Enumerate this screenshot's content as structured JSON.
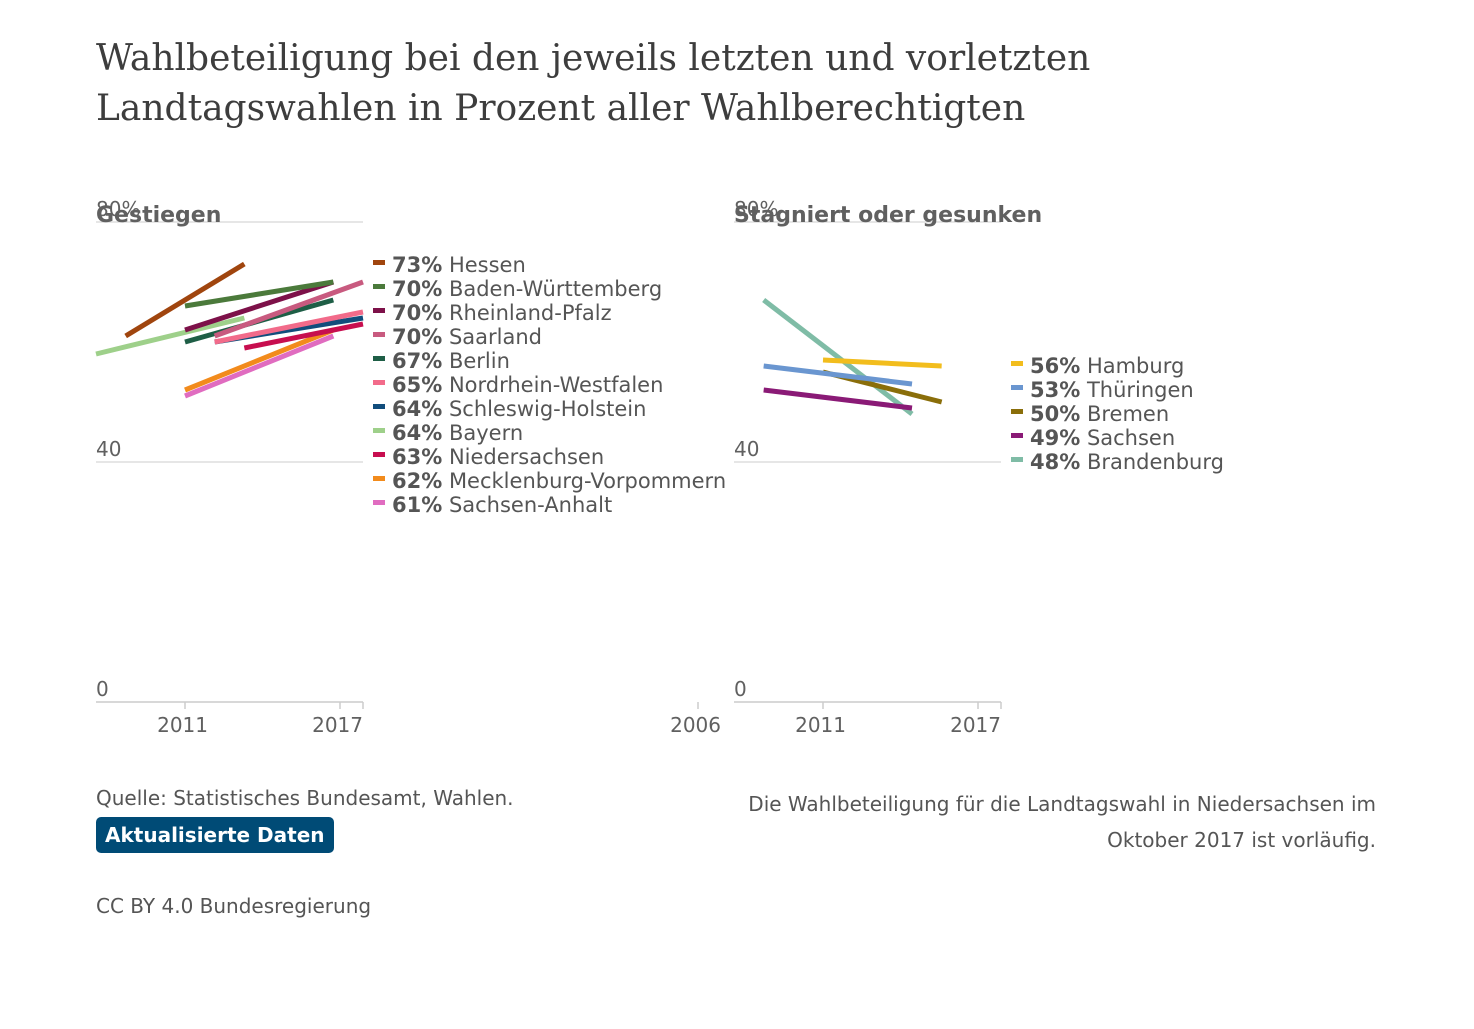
{
  "title": "Wahlbeteiligung bei den jeweils letzten und vorletzten Landtagswahlen in Prozent aller Wahlberechtigten",
  "chart_data": [
    {
      "type": "line",
      "title": "Gestiegen",
      "y_ticks": [
        "80%",
        "40",
        "0"
      ],
      "x_ticks": [
        "2011",
        "2017"
      ],
      "ylim": [
        0,
        80
      ],
      "xlim": [
        2008,
        2017
      ],
      "grid": true,
      "series": [
        {
          "name": "Hessen",
          "value_label": "73%",
          "color": "#a0450e",
          "points": [
            [
              2009,
              61
            ],
            [
              2013,
              73
            ]
          ]
        },
        {
          "name": "Baden-Württemberg",
          "value_label": "70%",
          "color": "#4b7a3b",
          "points": [
            [
              2011,
              66
            ],
            [
              2016,
              70
            ]
          ]
        },
        {
          "name": "Rheinland-Pfalz",
          "value_label": "70%",
          "color": "#7d1149",
          "points": [
            [
              2011,
              62
            ],
            [
              2016,
              70
            ]
          ]
        },
        {
          "name": "Saarland",
          "value_label": "70%",
          "color": "#c85a7f",
          "points": [
            [
              2012,
              61
            ],
            [
              2017,
              70
            ]
          ]
        },
        {
          "name": "Berlin",
          "value_label": "67%",
          "color": "#1e5e46",
          "points": [
            [
              2011,
              60
            ],
            [
              2016,
              67
            ]
          ]
        },
        {
          "name": "Nordrhein-Westfalen",
          "value_label": "65%",
          "color": "#f26b8a",
          "points": [
            [
              2012,
              60
            ],
            [
              2017,
              65
            ]
          ]
        },
        {
          "name": "Schleswig-Holstein",
          "value_label": "64%",
          "color": "#114d7c",
          "points": [
            [
              2012,
              60
            ],
            [
              2017,
              64
            ]
          ]
        },
        {
          "name": "Bayern",
          "value_label": "64%",
          "color": "#9ed08a",
          "points": [
            [
              2008,
              58
            ],
            [
              2013,
              64
            ]
          ]
        },
        {
          "name": "Niedersachsen",
          "value_label": "63%",
          "color": "#c70e4f",
          "points": [
            [
              2013,
              59
            ],
            [
              2017,
              63
            ]
          ]
        },
        {
          "name": "Mecklenburg-Vorpommern",
          "value_label": "62%",
          "color": "#f28b1c",
          "points": [
            [
              2011,
              52
            ],
            [
              2016,
              62
            ]
          ]
        },
        {
          "name": "Sachsen-Anhalt",
          "value_label": "61%",
          "color": "#e06cc0",
          "points": [
            [
              2011,
              51
            ],
            [
              2016,
              61
            ]
          ]
        }
      ]
    },
    {
      "type": "line",
      "title": "Stagniert oder gesunken",
      "y_ticks": [
        "80%",
        "40",
        "0"
      ],
      "x_ticks": [
        "2006",
        "2011",
        "2017"
      ],
      "ylim": [
        0,
        80
      ],
      "xlim": [
        2008,
        2017
      ],
      "grid": true,
      "series": [
        {
          "name": "Hamburg",
          "value_label": "56%",
          "color": "#f2bd1d",
          "points": [
            [
              2011,
              57
            ],
            [
              2015,
              56
            ]
          ]
        },
        {
          "name": "Thüringen",
          "value_label": "53%",
          "color": "#6a96d0",
          "points": [
            [
              2009,
              56
            ],
            [
              2014,
              53
            ]
          ]
        },
        {
          "name": "Bremen",
          "value_label": "50%",
          "color": "#8a6e0a",
          "points": [
            [
              2011,
              55
            ],
            [
              2015,
              50
            ]
          ]
        },
        {
          "name": "Sachsen",
          "value_label": "49%",
          "color": "#8a1a76",
          "points": [
            [
              2009,
              52
            ],
            [
              2014,
              49
            ]
          ]
        },
        {
          "name": "Brandenburg",
          "value_label": "48%",
          "color": "#7fbca6",
          "points": [
            [
              2009,
              67
            ],
            [
              2014,
              48
            ]
          ]
        }
      ]
    }
  ],
  "footer": {
    "source": "Quelle: Statistisches Bundesamt, Wahlen.",
    "update_label": "Aktualisierte Daten",
    "license": "CC BY 4.0 Bundesregierung",
    "note": "Die Wahlbeteiligung für die Landtagswahl in Niedersachsen im Oktober 2017 ist vorläufig."
  }
}
